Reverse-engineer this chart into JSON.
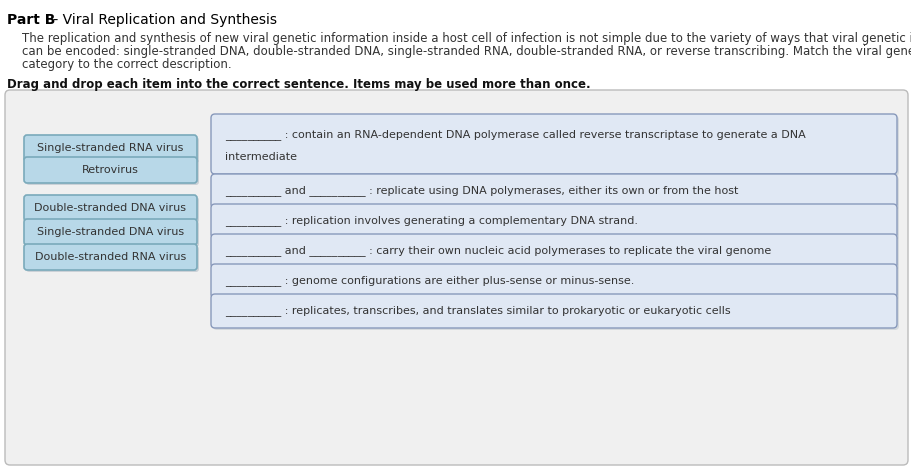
{
  "title_bold": "Part B",
  "title_rest": " - Viral Replication and Synthesis",
  "desc_lines": [
    "    The replication and synthesis of new viral genetic information inside a host cell of infection is not simple due to the variety of ways that viral genetic infor ",
    "    can be encoded: single-stranded DNA, double-stranded DNA, single-stranded RNA, double-stranded RNA, or reverse transcribing. Match the viral gene ",
    "    category to the correct description."
  ],
  "instruction": "Drag and drop each item into the correct sentence. Items may be used more than once.",
  "drag_items": [
    "Single-stranded RNA virus",
    "Retrovirus",
    "Double-stranded DNA virus",
    "Single-stranded DNA virus",
    "Double-stranded RNA virus"
  ],
  "box1_line1": "__________ : contain an RNA-dependent DNA polymerase called reverse transcriptase to generate a DNA",
  "box1_line2": "intermediate",
  "box2_text": "__________ and __________ : replicate using DNA polymerases, either its own or from the host",
  "box3_text": "__________ : replication involves generating a complementary DNA strand.",
  "box4_text": "__________ and __________ : carry their own nucleic acid polymerases to replicate the viral genome",
  "box5_text": "__________ : genome configurations are either plus-sense or minus-sense.",
  "box6_text": "__________ : replicates, transcribes, and translates similar to prokaryotic or eukaryotic cells",
  "outer_box_color": "#f0f0f0",
  "outer_box_edge": "#bbbbbb",
  "drag_btn_face": "#b8d8e8",
  "drag_btn_edge": "#7aaabb",
  "drag_btn_shadow": "#8899aa",
  "answer_box_face": "#e0e8f4",
  "answer_box_edge": "#8899bb",
  "bg_color": "#ffffff",
  "title_color": "#000000",
  "desc_color": "#333333",
  "instr_color": "#111111",
  "text_color": "#333333",
  "font_size_title": 10,
  "font_size_desc": 8.5,
  "font_size_instr": 8.5,
  "font_size_btn": 8,
  "font_size_box": 8
}
